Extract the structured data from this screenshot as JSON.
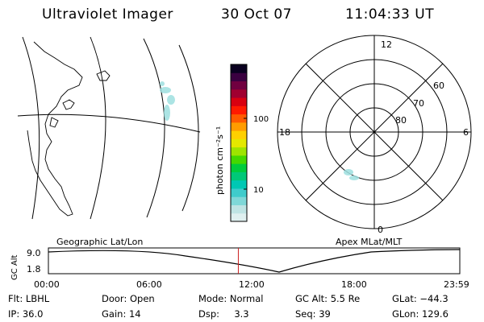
{
  "header": {
    "title": "Ultraviolet Imager",
    "date": "30 Oct 07",
    "time": "11:04:33 UT"
  },
  "colorbar": {
    "unit_label": "photon cm⁻²s⁻¹",
    "scale": "log",
    "ticks": [
      "100",
      "10"
    ],
    "colors": [
      "#dff0f0",
      "#bfe4e4",
      "#7fd8d8",
      "#3fcccc",
      "#00c8b4",
      "#00c878",
      "#00cc3c",
      "#44d800",
      "#9ee400",
      "#e4e800",
      "#ffd000",
      "#ff9c00",
      "#ff5a00",
      "#ff1a00",
      "#d80010",
      "#a00030",
      "#700040",
      "#3a0040",
      "#0a0020"
    ]
  },
  "geo_panel": {
    "label": "Geographic Lat/Lon"
  },
  "polar_panel": {
    "label": "Apex MLat/MLT",
    "mlt_labels": {
      "top": "12",
      "left": "18",
      "right": "6",
      "bottom": "0"
    },
    "mlat_labels": [
      "60",
      "70",
      "80"
    ]
  },
  "timeline": {
    "ylabel": "GC Alt",
    "ticks": [
      "9.0",
      "1.8"
    ],
    "x_ticks": [
      "00:00",
      "06:00",
      "12:00",
      "18:00",
      "23:59"
    ],
    "current_marker_hour": 11.08
  },
  "footer": {
    "rows": [
      [
        {
          "key": "Flt:",
          "val": "LBHL"
        },
        {
          "key": "Door:",
          "val": "Open"
        },
        {
          "key": "Mode:",
          "val": "Normal"
        },
        {
          "key": "GC Alt:",
          "val": "5.5 Re"
        },
        {
          "key": "GLat:",
          "val": "−44.3"
        }
      ],
      [
        {
          "key": "IP:",
          "val": "36.0"
        },
        {
          "key": "Gain:",
          "val": "14"
        },
        {
          "key": "Dsp:",
          "val": "3.3"
        },
        {
          "key": "Seq:",
          "val": "39"
        },
        {
          "key": "GLon:",
          "val": "129.6"
        }
      ]
    ]
  }
}
